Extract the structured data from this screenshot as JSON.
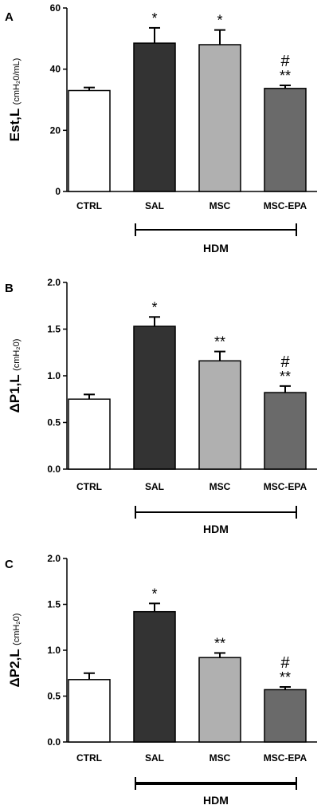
{
  "chart_data": [
    {
      "type": "bar",
      "panel": "A",
      "ylabel_main": "Est,L",
      "ylabel_unit": "(cmH₂0/mL)",
      "categories": [
        "CTRL",
        "SAL",
        "MSC",
        "MSC-EPA"
      ],
      "values": [
        33,
        48.5,
        48,
        33.7
      ],
      "errors": [
        1,
        5,
        4.8,
        1
      ],
      "annotations": [
        [
          "",
          ""
        ],
        [
          "*",
          ""
        ],
        [
          "*",
          ""
        ],
        [
          "**",
          "#"
        ]
      ],
      "ylim": [
        0,
        60
      ],
      "yticks": [
        "0",
        "20",
        "40",
        "60"
      ],
      "group_label": "HDM",
      "colors": [
        "#ffffff",
        "#333333",
        "#b0b0b0",
        "#6a6a6a"
      ]
    },
    {
      "type": "bar",
      "panel": "B",
      "ylabel_main": "ΔP1,L",
      "ylabel_unit": "(cmH₂0)",
      "categories": [
        "CTRL",
        "SAL",
        "MSC",
        "MSC-EPA"
      ],
      "values": [
        0.75,
        1.53,
        1.16,
        0.82
      ],
      "errors": [
        0.05,
        0.1,
        0.1,
        0.07
      ],
      "annotations": [
        [
          "",
          ""
        ],
        [
          "*",
          ""
        ],
        [
          "**",
          ""
        ],
        [
          "**",
          "#"
        ]
      ],
      "ylim": [
        0,
        2
      ],
      "yticks": [
        "0.0",
        "0.5",
        "1.0",
        "1.5",
        "2.0"
      ],
      "group_label": "HDM",
      "colors": [
        "#ffffff",
        "#333333",
        "#b0b0b0",
        "#6a6a6a"
      ]
    },
    {
      "type": "bar",
      "panel": "C",
      "ylabel_main": "ΔP2,L",
      "ylabel_unit": "(cmH₂0)",
      "categories": [
        "CTRL",
        "SAL",
        "MSC",
        "MSC-EPA"
      ],
      "values": [
        0.68,
        1.42,
        0.92,
        0.57
      ],
      "errors": [
        0.07,
        0.09,
        0.05,
        0.03
      ],
      "annotations": [
        [
          "",
          ""
        ],
        [
          "*",
          ""
        ],
        [
          "**",
          ""
        ],
        [
          "**",
          "#"
        ]
      ],
      "ylim": [
        0,
        2
      ],
      "yticks": [
        "0.0",
        "0.5",
        "1.0",
        "1.5",
        "2.0"
      ],
      "group_label": "HDM",
      "colors": [
        "#ffffff",
        "#333333",
        "#b0b0b0",
        "#6a6a6a"
      ]
    }
  ]
}
